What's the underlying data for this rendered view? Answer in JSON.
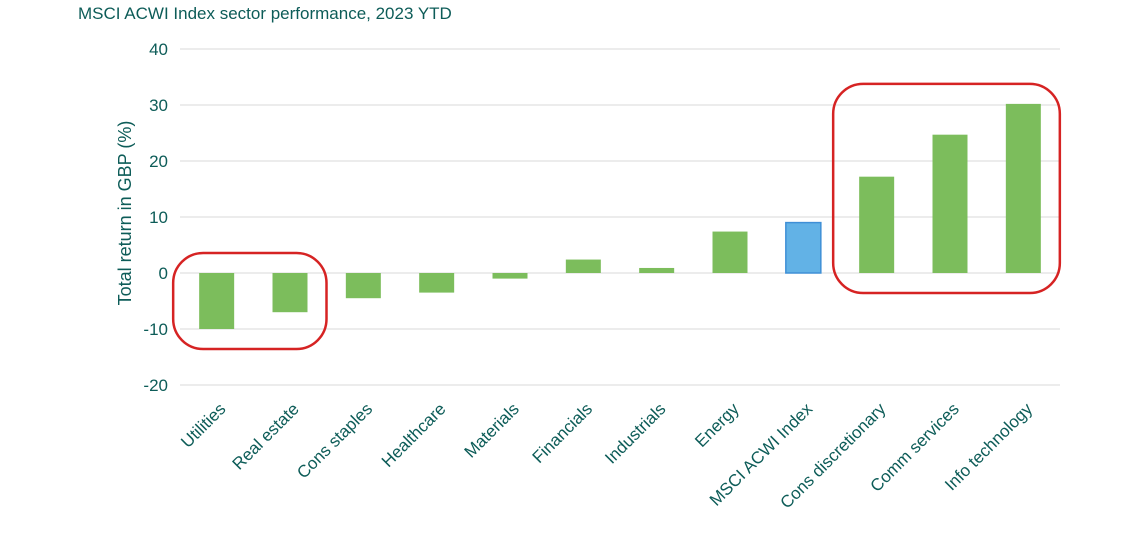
{
  "chart_data": {
    "type": "bar",
    "title": "MSCI ACWI Index sector performance, 2023 YTD",
    "xlabel": "",
    "ylabel": "Total return in GBP (%)",
    "ylim": [
      -20,
      40
    ],
    "yticks": [
      -20,
      -10,
      0,
      10,
      20,
      30,
      40
    ],
    "grid": true,
    "categories": [
      "Utilities",
      "Real estate",
      "Cons staples",
      "Healthcare",
      "Materials",
      "Financials",
      "Industrials",
      "Energy",
      "MSCI ACWI Index",
      "Cons discretionary",
      "Comm services",
      "Info technology"
    ],
    "values": [
      -10.0,
      -7.0,
      -4.5,
      -3.5,
      -1.0,
      2.4,
      0.9,
      7.4,
      9.0,
      17.2,
      24.7,
      30.2
    ],
    "colors": {
      "bar": "#7cbd5c",
      "highlight_bar": "#62b2e6",
      "highlight_bar_border": "#3f8fd6",
      "annotation_box": "#d62323",
      "text": "#0d5c58",
      "grid": "#d9d9d9"
    },
    "highlight_category": "MSCI ACWI Index",
    "annotations": [
      {
        "shape": "rounded-rect",
        "categories": [
          "Utilities",
          "Real estate"
        ]
      },
      {
        "shape": "rounded-rect",
        "categories": [
          "Cons discretionary",
          "Comm services",
          "Info technology"
        ]
      }
    ]
  }
}
